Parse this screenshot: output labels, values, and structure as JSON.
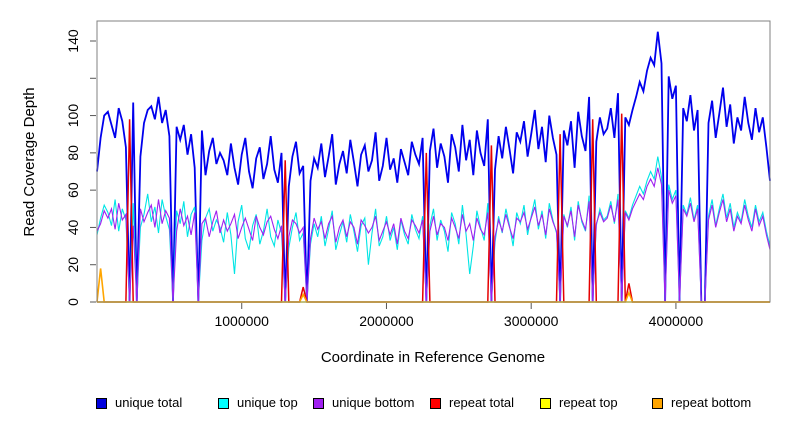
{
  "chart_data": {
    "type": "line",
    "title": "",
    "xlabel": "Coordinate in Reference Genome",
    "ylabel": "Read Coverage Depth",
    "xlim": [
      0,
      4650000
    ],
    "ylim": [
      0,
      150
    ],
    "grid": "off",
    "legend_position": "bottom",
    "x_ticks": [
      {
        "value": 1000000,
        "label": "1000000"
      },
      {
        "value": 2000000,
        "label": "2000000"
      },
      {
        "value": 3000000,
        "label": "3000000"
      },
      {
        "value": 4000000,
        "label": "4000000"
      }
    ],
    "y_ticks": [
      {
        "value": 0,
        "label": "0"
      },
      {
        "value": 20,
        "label": "20"
      },
      {
        "value": 40,
        "label": "40"
      },
      {
        "value": 60,
        "label": "60"
      },
      {
        "value": 80,
        "label": "80"
      },
      {
        "value": 100,
        "label": "100"
      },
      {
        "value": 120,
        "label": ""
      },
      {
        "value": 140,
        "label": "140"
      }
    ],
    "x_start": 0,
    "x_step": 25000,
    "n_points": 187,
    "series": [
      {
        "name": "unique total",
        "color": "#0000EE",
        "width": 1.8,
        "values": [
          70,
          88,
          100,
          102,
          95,
          88,
          104,
          97,
          83,
          0,
          107,
          0,
          78,
          96,
          103,
          105,
          98,
          110,
          96,
          103,
          89,
          0,
          94,
          87,
          95,
          79,
          90,
          72,
          0,
          92,
          68,
          81,
          88,
          74,
          80,
          76,
          68,
          85,
          72,
          63,
          79,
          88,
          70,
          61,
          77,
          83,
          66,
          74,
          89,
          71,
          64,
          80,
          0,
          62,
          78,
          86,
          69,
          73,
          0,
          65,
          77,
          72,
          85,
          67,
          78,
          90,
          63,
          74,
          81,
          69,
          87,
          75,
          62,
          79,
          84,
          70,
          76,
          91,
          65,
          73,
          88,
          71,
          77,
          64,
          82,
          75,
          68,
          86,
          79,
          74,
          88,
          0,
          81,
          93,
          72,
          85,
          78,
          64,
          90,
          83,
          70,
          95,
          76,
          87,
          68,
          92,
          80,
          73,
          98,
          0,
          71,
          89,
          77,
          94,
          82,
          69,
          91,
          86,
          97,
          78,
          90,
          103,
          82,
          94,
          75,
          100,
          88,
          79,
          0,
          92,
          84,
          97,
          72,
          102,
          89,
          81,
          110,
          0,
          86,
          99,
          90,
          93,
          104,
          88,
          112,
          0,
          99,
          95,
          103,
          110,
          118,
          113,
          124,
          131,
          127,
          145,
          128,
          0,
          121,
          109,
          116,
          0,
          104,
          97,
          111,
          92,
          103,
          0,
          0,
          96,
          108,
          88,
          101,
          115,
          94,
          106,
          85,
          99,
          92,
          110,
          96,
          87,
          104,
          91,
          99,
          83,
          65
        ]
      },
      {
        "name": "unique top",
        "color": "#00E5E5",
        "width": 1.1,
        "values": [
          36,
          45,
          52,
          48,
          41,
          55,
          38,
          50,
          44,
          0,
          53,
          0,
          40,
          47,
          58,
          43,
          51,
          37,
          55,
          46,
          39,
          0,
          49,
          42,
          54,
          35,
          47,
          51,
          0,
          33,
          45,
          50,
          38,
          44,
          40,
          32,
          48,
          36,
          15,
          43,
          52,
          34,
          28,
          41,
          47,
          31,
          38,
          50,
          35,
          30,
          44,
          37,
          0,
          29,
          40,
          48,
          33,
          37,
          0,
          31,
          42,
          35,
          46,
          30,
          39,
          49,
          28,
          36,
          43,
          32,
          47,
          38,
          27,
          41,
          45,
          20,
          37,
          50,
          30,
          35,
          46,
          33,
          40,
          28,
          44,
          36,
          31,
          47,
          39,
          34,
          46,
          0,
          41,
          50,
          33,
          44,
          38,
          27,
          48,
          42,
          31,
          52,
          36,
          15,
          30,
          49,
          40,
          33,
          53,
          0,
          32,
          46,
          37,
          50,
          41,
          30,
          48,
          42,
          52,
          36,
          46,
          55,
          39,
          49,
          34,
          53,
          44,
          37,
          0,
          47,
          40,
          51,
          33,
          54,
          43,
          38,
          57,
          0,
          41,
          50,
          44,
          46,
          54,
          42,
          58,
          0,
          49,
          45,
          52,
          57,
          62,
          58,
          65,
          70,
          66,
          78,
          67,
          0,
          63,
          55,
          60,
          0,
          52,
          47,
          56,
          44,
          52,
          0,
          0,
          46,
          55,
          41,
          50,
          58,
          45,
          53,
          40,
          48,
          43,
          55,
          46,
          40,
          52,
          43,
          48,
          38,
          30
        ]
      },
      {
        "name": "unique bottom",
        "color": "#A020F0",
        "width": 1.1,
        "values": [
          38,
          42,
          49,
          45,
          50,
          39,
          53,
          44,
          47,
          0,
          41,
          0,
          50,
          43,
          48,
          52,
          40,
          55,
          42,
          49,
          45,
          0,
          38,
          50,
          41,
          46,
          36,
          48,
          0,
          42,
          45,
          35,
          43,
          49,
          37,
          44,
          38,
          42,
          47,
          34,
          40,
          45,
          39,
          33,
          46,
          40,
          36,
          43,
          46,
          39,
          34,
          41,
          0,
          35,
          44,
          42,
          37,
          40,
          0,
          34,
          45,
          39,
          43,
          34,
          42,
          46,
          32,
          40,
          44,
          35,
          43,
          40,
          31,
          44,
          41,
          37,
          40,
          46,
          33,
          38,
          43,
          36,
          42,
          31,
          45,
          38,
          34,
          44,
          41,
          37,
          44,
          0,
          38,
          46,
          36,
          42,
          40,
          33,
          45,
          40,
          34,
          47,
          38,
          42,
          33,
          45,
          39,
          36,
          48,
          0,
          35,
          44,
          38,
          47,
          40,
          34,
          45,
          43,
          48,
          39,
          45,
          51,
          41,
          47,
          36,
          50,
          43,
          38,
          0,
          46,
          41,
          49,
          35,
          52,
          44,
          39,
          54,
          0,
          42,
          48,
          43,
          45,
          52,
          43,
          55,
          0,
          48,
          44,
          50,
          54,
          58,
          55,
          62,
          66,
          62,
          72,
          63,
          0,
          60,
          53,
          57,
          0,
          50,
          46,
          53,
          43,
          50,
          0,
          0,
          44,
          52,
          40,
          48,
          55,
          43,
          50,
          38,
          46,
          42,
          52,
          44,
          38,
          50,
          41,
          46,
          36,
          28
        ]
      },
      {
        "name": "repeat total",
        "color": "#E60000",
        "width": 1.5,
        "spikes": [
          [
            9,
            98
          ],
          [
            52,
            76
          ],
          [
            57,
            8
          ],
          [
            91,
            80
          ],
          [
            109,
            84
          ],
          [
            128,
            90
          ],
          [
            137,
            98
          ],
          [
            145,
            101
          ],
          [
            147,
            10
          ]
        ]
      },
      {
        "name": "repeat top",
        "color": "#FFFF00",
        "width": 1.5,
        "spikes": []
      },
      {
        "name": "repeat bottom",
        "color": "#FFA500",
        "width": 1.6,
        "spikes": [
          [
            1,
            18
          ],
          [
            57,
            4
          ],
          [
            147,
            5
          ]
        ]
      }
    ],
    "legend": [
      {
        "label": "unique total",
        "color": "#0000DD"
      },
      {
        "label": "unique top",
        "color": "#00FFFF"
      },
      {
        "label": "unique bottom",
        "color": "#A020F0"
      },
      {
        "label": "repeat total",
        "color": "#FF0000"
      },
      {
        "label": "repeat top",
        "color": "#FFFF00"
      },
      {
        "label": "repeat bottom",
        "color": "#FFA500"
      }
    ]
  }
}
